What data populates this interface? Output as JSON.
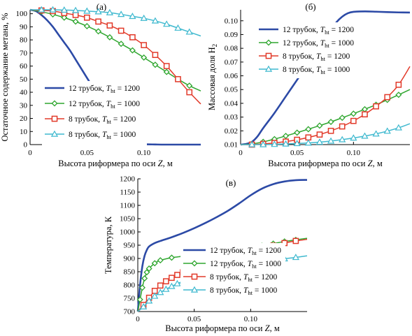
{
  "chart_data": [
    {
      "type": "line",
      "title": "(а)",
      "xlabel": "Высота риформера по оси Z, м",
      "ylabel": "Остаточное содержание метана, %",
      "xlim": [
        0,
        0.15
      ],
      "ylim": [
        0,
        103
      ],
      "xticks": [
        0,
        0.05,
        0.1
      ],
      "xtick_labels": [
        "0",
        "0.05",
        "0.10"
      ],
      "yticks": [
        0,
        10,
        20,
        30,
        40,
        50,
        60,
        70,
        80,
        90,
        100
      ],
      "ytick_labels": [
        "0",
        "10",
        "20",
        "30",
        "40",
        "50",
        "60",
        "70",
        "80",
        "90",
        "100"
      ],
      "legend": "bottom-left",
      "series": [
        {
          "name": "12 трубок, ",
          "sub": "ht",
          "temp": " = 1200",
          "color": "#2c4aa6",
          "marker": "none",
          "x": [
            0,
            0.005,
            0.01,
            0.015,
            0.02,
            0.025,
            0.03,
            0.035,
            0.04,
            0.045,
            0.05,
            0.055,
            0.06,
            0.065,
            0.07,
            0.075,
            0.08,
            0.085,
            0.09,
            0.095,
            0.1,
            0.11,
            0.12,
            0.15
          ],
          "y": [
            103,
            102,
            99,
            95,
            90,
            84,
            78,
            72,
            65,
            58,
            51,
            44,
            37,
            30,
            23,
            16,
            10,
            5.5,
            2.5,
            1,
            0.3,
            0.1,
            0,
            0
          ]
        },
        {
          "name": "12 трубок, ",
          "sub": "ht",
          "temp": " = 1000",
          "color": "#2fa62f",
          "marker": "diamond",
          "x": [
            0,
            0.01,
            0.02,
            0.03,
            0.04,
            0.05,
            0.06,
            0.07,
            0.08,
            0.09,
            0.1,
            0.11,
            0.12,
            0.13,
            0.14,
            0.15
          ],
          "y": [
            103,
            101.5,
            99.5,
            97,
            94,
            90.5,
            86.5,
            82,
            77,
            72,
            66.5,
            61,
            55.5,
            50,
            45,
            41
          ]
        },
        {
          "name": "8 трубок, ",
          "sub": "ht",
          "temp": " = 1200",
          "color": "#e23a2a",
          "marker": "square",
          "x": [
            0,
            0.01,
            0.02,
            0.03,
            0.04,
            0.05,
            0.06,
            0.07,
            0.08,
            0.09,
            0.1,
            0.11,
            0.12,
            0.13,
            0.14,
            0.15
          ],
          "y": [
            103,
            102.5,
            102,
            100.5,
            99,
            97,
            94,
            91,
            87,
            82,
            76,
            68.5,
            60,
            50,
            40,
            31
          ]
        },
        {
          "name": "8 трубок, ",
          "sub": "ht",
          "temp": " = 1000",
          "color": "#3fb9cf",
          "marker": "triangle",
          "x": [
            0,
            0.01,
            0.02,
            0.03,
            0.04,
            0.05,
            0.06,
            0.07,
            0.08,
            0.09,
            0.1,
            0.11,
            0.12,
            0.13,
            0.14,
            0.15
          ],
          "y": [
            103,
            103,
            103,
            102.8,
            102.5,
            102,
            101.5,
            100.8,
            99.5,
            98,
            96.5,
            94.5,
            92,
            89,
            86,
            83
          ]
        }
      ]
    },
    {
      "type": "line",
      "title": "(б)",
      "xlabel": "Высота риформера по оси Z, м",
      "ylabel": "Массовая доля H",
      "ylabel_sub": "2",
      "xlim": [
        0,
        0.15
      ],
      "ylim": [
        0.01,
        0.108
      ],
      "xticks": [
        0,
        0.05,
        0.1
      ],
      "xtick_labels": [
        "0",
        "0.05",
        "0.10"
      ],
      "yticks": [
        0.01,
        0.02,
        0.03,
        0.04,
        0.05,
        0.06,
        0.07,
        0.08,
        0.09,
        0.1
      ],
      "ytick_labels": [
        "0.01",
        "0.02",
        "0.03",
        "0.04",
        "0.05",
        "0.06",
        "0.07",
        "0.08",
        "0.09",
        "0.10"
      ],
      "legend": "center-right",
      "series": [
        {
          "name": "12 трубок, ",
          "sub": "ht",
          "temp": " = 1200",
          "color": "#2c4aa6",
          "marker": "none",
          "x": [
            0,
            0.005,
            0.01,
            0.015,
            0.02,
            0.03,
            0.04,
            0.05,
            0.06,
            0.07,
            0.08,
            0.085,
            0.09,
            0.095,
            0.1,
            0.11,
            0.12,
            0.13,
            0.14,
            0.15
          ],
          "y": [
            0.01,
            0.0105,
            0.012,
            0.016,
            0.022,
            0.033,
            0.045,
            0.057,
            0.069,
            0.081,
            0.093,
            0.099,
            0.103,
            0.1055,
            0.1065,
            0.1068,
            0.1066,
            0.1063,
            0.1061,
            0.106
          ]
        },
        {
          "name": "12 трубок, ",
          "sub": "ht",
          "temp": " = 1000",
          "color": "#2fa62f",
          "marker": "diamond",
          "x": [
            0,
            0.01,
            0.02,
            0.03,
            0.04,
            0.05,
            0.06,
            0.07,
            0.08,
            0.09,
            0.1,
            0.11,
            0.12,
            0.13,
            0.14,
            0.15
          ],
          "y": [
            0.01,
            0.0105,
            0.012,
            0.014,
            0.0163,
            0.0187,
            0.0212,
            0.0238,
            0.0265,
            0.0295,
            0.0325,
            0.0357,
            0.039,
            0.0425,
            0.0462,
            0.05
          ]
        },
        {
          "name": "8 трубок, ",
          "sub": "ht",
          "temp": " = 1200",
          "color": "#e23a2a",
          "marker": "square",
          "x": [
            0,
            0.01,
            0.02,
            0.03,
            0.04,
            0.05,
            0.06,
            0.07,
            0.08,
            0.09,
            0.1,
            0.11,
            0.12,
            0.13,
            0.14,
            0.15
          ],
          "y": [
            0.01,
            0.01,
            0.0105,
            0.0112,
            0.0122,
            0.0135,
            0.0152,
            0.0173,
            0.02,
            0.0232,
            0.0272,
            0.032,
            0.0378,
            0.0445,
            0.0535,
            0.0668
          ]
        },
        {
          "name": "8 трубок, ",
          "sub": "ht",
          "temp": " = 1000",
          "color": "#3fb9cf",
          "marker": "triangle",
          "x": [
            0,
            0.01,
            0.02,
            0.03,
            0.04,
            0.05,
            0.06,
            0.07,
            0.08,
            0.09,
            0.1,
            0.11,
            0.12,
            0.13,
            0.14,
            0.15
          ],
          "y": [
            0.01,
            0.01,
            0.01,
            0.0102,
            0.0105,
            0.0108,
            0.0112,
            0.0118,
            0.0126,
            0.0136,
            0.0148,
            0.0162,
            0.0178,
            0.0198,
            0.0222,
            0.0252
          ]
        }
      ]
    },
    {
      "type": "line",
      "title": "(в)",
      "xlabel": "Высота риформера по оси Z, м",
      "ylabel": "Температура, К",
      "xlim": [
        0,
        0.15
      ],
      "ylim": [
        700,
        1200
      ],
      "xticks": [
        0,
        0.05,
        0.1
      ],
      "xtick_labels": [
        "0",
        "0.05",
        "0.10"
      ],
      "yticks": [
        700,
        750,
        800,
        850,
        900,
        950,
        1000,
        1050,
        1100,
        1150,
        1200
      ],
      "ytick_labels": [
        "700",
        "750",
        "800",
        "850",
        "900",
        "950",
        "1000",
        "1050",
        "1100",
        "1150",
        "1200"
      ],
      "legend": "center-right",
      "series": [
        {
          "name": "12 трубок, ",
          "sub": "ht",
          "temp": " = 1200",
          "color": "#2c4aa6",
          "marker": "none",
          "x": [
            0,
            0.002,
            0.004,
            0.006,
            0.008,
            0.01,
            0.015,
            0.02,
            0.03,
            0.04,
            0.05,
            0.06,
            0.07,
            0.08,
            0.09,
            0.1,
            0.11,
            0.12,
            0.13,
            0.14,
            0.15
          ],
          "y": [
            700,
            800,
            870,
            910,
            932,
            945,
            958,
            966,
            980,
            996,
            1014,
            1034,
            1056,
            1080,
            1108,
            1138,
            1163,
            1180,
            1190,
            1195,
            1196
          ]
        },
        {
          "name": "12 трубок, ",
          "sub": "ht",
          "temp": " = 1000",
          "color": "#2fa62f",
          "marker": "diamond",
          "x": [
            0,
            0.002,
            0.004,
            0.006,
            0.008,
            0.01,
            0.015,
            0.02,
            0.03,
            0.04,
            0.05,
            0.06,
            0.07,
            0.08,
            0.09,
            0.1,
            0.11,
            0.12,
            0.13,
            0.14,
            0.15
          ],
          "y": [
            700,
            745,
            790,
            825,
            848,
            862,
            882,
            893,
            903,
            908,
            912,
            916,
            920,
            926,
            932,
            940,
            948,
            956,
            964,
            970,
            976
          ]
        },
        {
          "name": "8 трубок, ",
          "sub": "ht",
          "temp": " = 1200",
          "color": "#e23a2a",
          "marker": "square",
          "x": [
            0,
            0.005,
            0.01,
            0.015,
            0.02,
            0.025,
            0.03,
            0.035,
            0.04,
            0.05,
            0.06,
            0.07,
            0.08,
            0.09,
            0.1,
            0.11,
            0.12,
            0.13,
            0.14,
            0.15
          ],
          "y": [
            700,
            725,
            752,
            778,
            798,
            814,
            827,
            838,
            848,
            864,
            877,
            890,
            902,
            914,
            926,
            938,
            948,
            958,
            966,
            972
          ]
        },
        {
          "name": "8 трубок, ",
          "sub": "ht",
          "temp": " = 1000",
          "color": "#3fb9cf",
          "marker": "triangle",
          "x": [
            0,
            0.005,
            0.01,
            0.015,
            0.02,
            0.025,
            0.03,
            0.035,
            0.04,
            0.05,
            0.06,
            0.07,
            0.08,
            0.09,
            0.1,
            0.11,
            0.12,
            0.13,
            0.14,
            0.15
          ],
          "y": [
            700,
            718,
            740,
            758,
            772,
            784,
            795,
            805,
            814,
            830,
            844,
            856,
            866,
            874,
            881,
            888,
            894,
            899,
            904,
            910
          ]
        }
      ]
    }
  ],
  "legend_symbol": "T"
}
